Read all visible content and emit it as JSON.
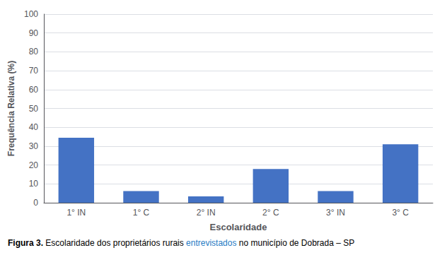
{
  "chart_data": {
    "type": "bar",
    "categories": [
      "1° IN",
      "1° C",
      "2° IN",
      "2° C",
      "3° IN",
      "3° C"
    ],
    "values": [
      34.5,
      6.2,
      3.4,
      17.9,
      6.2,
      31.0
    ],
    "color": "#4472C4",
    "xlabel": "Escolaridade",
    "ylabel": "Frequência Relativa (%)",
    "ylim": [
      0,
      100
    ],
    "yticks": [
      0,
      10,
      20,
      30,
      40,
      50,
      60,
      70,
      80,
      90,
      100
    ],
    "grid": true,
    "caption": [
      {
        "text": "Figura 3."
      },
      {
        "text": " Escolaridade dos proprietários rurais "
      },
      {
        "text": "entrevistados",
        "color": "#1F7BC4"
      },
      {
        "text": " no município de Dobrada – SP"
      }
    ]
  }
}
